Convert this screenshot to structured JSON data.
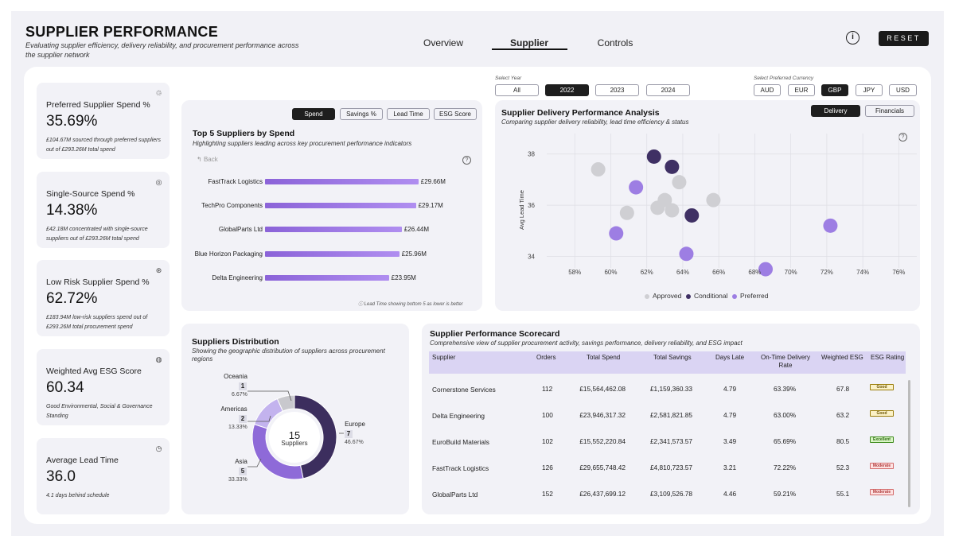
{
  "header": {
    "title": "SUPPLIER PERFORMANCE",
    "subtitle": "Evaluating supplier efficiency, delivery reliability, and procurement performance across the supplier network",
    "nav": [
      "Overview",
      "Supplier",
      "Controls"
    ],
    "active_nav": "Supplier",
    "info_icon": "info-icon",
    "reset_label": "RESET"
  },
  "kpis": [
    {
      "title": "Preferred Supplier Spend %",
      "value": "35.69%",
      "note": "£104.67M sourced through preferred suppliers out of £293.26M total spend",
      "icon": "handshake-icon"
    },
    {
      "title": "Single-Source Spend %",
      "value": "14.38%",
      "note": "£42.18M concentrated with single-source suppliers out of £293.26M total spend",
      "icon": "target-icon"
    },
    {
      "title": "Low Risk Supplier Spend %",
      "value": "62.72%",
      "note": "£183.94M low-risk suppliers spend out of £293.26M total procurement spend",
      "icon": "risk-icon"
    },
    {
      "title": "Weighted Avg ESG Score",
      "value": "60.34",
      "note": "Good Environmental, Social & Governance Standing",
      "icon": "globe-icon"
    },
    {
      "title": "Average Lead Time",
      "value": "36.0",
      "note": "4.1 days behind schedule",
      "icon": "clock-icon"
    }
  ],
  "filters": {
    "year_label": "Select Year",
    "years": [
      "All",
      "2022",
      "2023",
      "2024"
    ],
    "selected_year": "2022",
    "currency_label": "Select Preferred Currency",
    "currencies": [
      "AUD",
      "EUR",
      "GBP",
      "JPY",
      "USD"
    ],
    "selected_currency": "GBP"
  },
  "top5": {
    "tabs": [
      "Spend",
      "Savings %",
      "Lead Time",
      "ESG Score"
    ],
    "active_tab": "Spend",
    "title": "Top 5 Suppliers by Spend",
    "subtitle": "Highlighting suppliers leading across key procurement performance indicators",
    "back_label": "Back",
    "footnote": "Lead Time showing bottom 5 as lower is better",
    "chart_data": {
      "type": "bar",
      "orientation": "horizontal",
      "categories": [
        "FastTrack Logistics",
        "TechPro Components",
        "GlobalParts Ltd",
        "Blue Horizon Packaging",
        "Delta Engineering"
      ],
      "values": [
        29.66,
        29.17,
        26.44,
        25.96,
        23.95
      ],
      "value_labels": [
        "£29.66M",
        "£29.17M",
        "£26.44M",
        "£25.96M",
        "£23.95M"
      ],
      "xlim": [
        0,
        36
      ]
    }
  },
  "delivery": {
    "title": "Supplier Delivery Performance Analysis",
    "subtitle": "Comparing supplier delivery reliability, lead time efficiency & status",
    "tabs": [
      "Delivery",
      "Financials"
    ],
    "active_tab": "Delivery",
    "chart_data": {
      "type": "scatter",
      "ylabel": "Avg Lead Time",
      "xlim": [
        0.56,
        0.77
      ],
      "ylim": [
        33.3,
        38.8
      ],
      "x_ticks": [
        "58%",
        "60%",
        "62%",
        "64%",
        "66%",
        "68%",
        "70%",
        "72%",
        "74%",
        "76%"
      ],
      "x_tick_values": [
        0.58,
        0.6,
        0.62,
        0.64,
        0.66,
        0.68,
        0.7,
        0.72,
        0.74,
        0.76
      ],
      "y_ticks": [
        "34",
        "36",
        "38"
      ],
      "y_tick_values": [
        34,
        36,
        38
      ],
      "legend": [
        "Approved",
        "Conditional",
        "Preferred"
      ],
      "colors": {
        "Approved": "#cfcfd3",
        "Conditional": "#3f3064",
        "Preferred": "#9d7ee3"
      },
      "series": [
        {
          "name": "Approved",
          "points": [
            [
              0.593,
              37.4
            ],
            [
              0.609,
              35.7
            ],
            [
              0.626,
              35.9
            ],
            [
              0.63,
              36.2
            ],
            [
              0.634,
              35.8
            ],
            [
              0.638,
              36.9
            ],
            [
              0.657,
              36.2
            ]
          ]
        },
        {
          "name": "Conditional",
          "points": [
            [
              0.624,
              37.9
            ],
            [
              0.634,
              37.5
            ],
            [
              0.645,
              35.6
            ]
          ]
        },
        {
          "name": "Preferred",
          "points": [
            [
              0.614,
              36.7
            ],
            [
              0.603,
              34.9
            ],
            [
              0.642,
              34.1
            ],
            [
              0.686,
              33.5
            ],
            [
              0.722,
              35.2
            ]
          ]
        }
      ]
    }
  },
  "distribution": {
    "title": "Suppliers Distribution",
    "subtitle": "Showing the geographic distribution of suppliers across procurement regions",
    "center_value": "15",
    "center_label": "Suppliers",
    "chart_data": {
      "type": "pie",
      "style": "donut",
      "categories": [
        "Europe",
        "Asia",
        "Americas",
        "Oceania"
      ],
      "values": [
        7,
        5,
        2,
        1
      ],
      "percent_labels": [
        "46.67%",
        "33.33%",
        "13.33%",
        "6.67%"
      ],
      "colors": [
        "#3c2e5e",
        "#8e6ad8",
        "#c3b3ee",
        "#c8c8cd"
      ]
    }
  },
  "scorecard": {
    "title": "Supplier Performance Scorecard",
    "subtitle": "Comprehensive view of supplier procurement activity, savings performance, delivery reliability, and ESG impact",
    "columns": [
      "Supplier",
      "Orders",
      "Total Spend",
      "Total Savings",
      "Days Late",
      "On-Time Delivery Rate",
      "Weighted ESG",
      "ESG Rating"
    ],
    "rows": [
      {
        "supplier": "Cornerstone Services",
        "orders": "112",
        "spend": "£15,564,462.08",
        "savings": "£1,159,360.33",
        "late": "4.79",
        "otd": "63.39%",
        "esg": "67.8",
        "rating": "Good"
      },
      {
        "supplier": "Delta Engineering",
        "orders": "100",
        "spend": "£23,946,317.32",
        "savings": "£2,581,821.85",
        "late": "4.79",
        "otd": "63.00%",
        "esg": "63.2",
        "rating": "Good"
      },
      {
        "supplier": "EuroBuild Materials",
        "orders": "102",
        "spend": "£15,552,220.84",
        "savings": "£2,341,573.57",
        "late": "3.49",
        "otd": "65.69%",
        "esg": "80.5",
        "rating": "Excellent"
      },
      {
        "supplier": "FastTrack Logistics",
        "orders": "126",
        "spend": "£29,655,748.42",
        "savings": "£4,810,723.57",
        "late": "3.21",
        "otd": "72.22%",
        "esg": "52.3",
        "rating": "Moderate"
      },
      {
        "supplier": "GlobalParts Ltd",
        "orders": "152",
        "spend": "£26,437,699.12",
        "savings": "£3,109,526.78",
        "late": "4.46",
        "otd": "59.21%",
        "esg": "55.1",
        "rating": "Moderate"
      }
    ]
  }
}
